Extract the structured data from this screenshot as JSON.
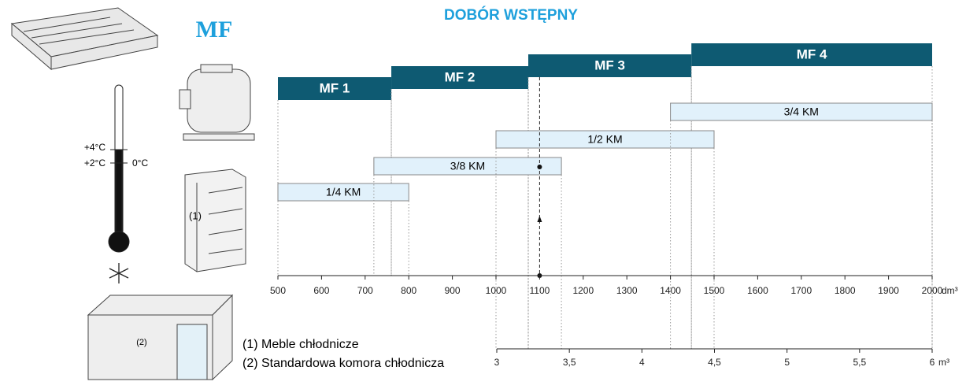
{
  "title": "DOBÓR WSTĘPNY",
  "logo": "MF",
  "thermometer": {
    "labels": [
      "+4°C",
      "+2°C",
      "0°C"
    ]
  },
  "models": [
    {
      "label": "MF 1",
      "range": [
        500,
        760
      ]
    },
    {
      "label": "MF 2",
      "range": [
        760,
        1074
      ]
    },
    {
      "label": "MF 3",
      "range": [
        1074,
        1448
      ]
    },
    {
      "label": "MF 4",
      "range": [
        1448,
        2000
      ]
    }
  ],
  "power": [
    {
      "label": "1/4 KM",
      "range": [
        500,
        800
      ]
    },
    {
      "label": "3/8 KM",
      "range": [
        720,
        1150
      ]
    },
    {
      "label": "1/2 KM",
      "range": [
        1000,
        1500
      ]
    },
    {
      "label": "3/4 KM",
      "range": [
        1400,
        2000
      ]
    }
  ],
  "axis": {
    "lim": [
      500,
      2000
    ],
    "ticks": [
      500,
      600,
      700,
      800,
      900,
      1000,
      1100,
      1200,
      1300,
      1400,
      1500,
      1600,
      1700,
      1800,
      1900,
      2000
    ],
    "unit": "dm³"
  },
  "axis2": {
    "lim": [
      3,
      6
    ],
    "ticks": [
      3,
      {
        "value": 3.5,
        "label": "3,5"
      },
      4,
      {
        "value": 4.5,
        "label": "4,5"
      },
      5,
      {
        "value": 5.5,
        "label": "5,5"
      },
      6
    ],
    "unit": "m³"
  },
  "marker": 1100,
  "fixture_labels": [
    "(1)",
    "(2)"
  ],
  "legend": [
    "(1) Meble chłodnicze",
    "(2) Standardowa komora chłodnicza"
  ]
}
